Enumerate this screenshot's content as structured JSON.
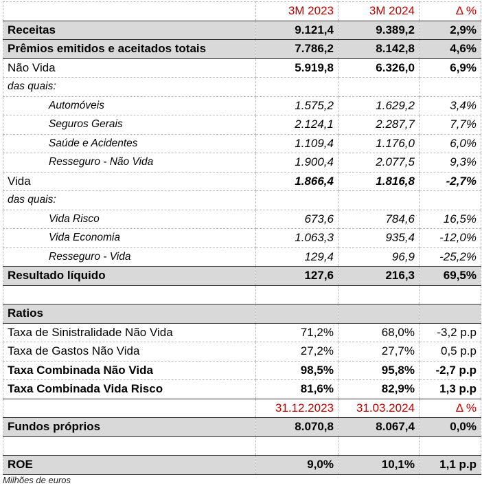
{
  "header": {
    "label": "",
    "col1": "3M 2023",
    "col2": "3M 2024",
    "col3": "Δ %"
  },
  "rows": [
    {
      "label": "Receitas",
      "v1": "9.121,4",
      "v2": "9.389,2",
      "v3": "2,9%"
    },
    {
      "label": "Prêmios emitidos e aceitados totais",
      "v1": "7.786,2",
      "v2": "8.142,8",
      "v3": "4,6%"
    },
    {
      "label": "Não Vida",
      "v1": "5.919,8",
      "v2": "6.326,0",
      "v3": "6,9%"
    },
    {
      "label": "das quais:",
      "v1": "",
      "v2": "",
      "v3": ""
    },
    {
      "label": "Automóveis",
      "v1": "1.575,2",
      "v2": "1.629,2",
      "v3": "3,4%"
    },
    {
      "label": "Seguros Gerais",
      "v1": "2.124,1",
      "v2": "2.287,7",
      "v3": "7,7%"
    },
    {
      "label": "Saúde e Acidentes",
      "v1": "1.109,4",
      "v2": "1.176,0",
      "v3": "6,0%"
    },
    {
      "label": "Resseguro - Não Vida",
      "v1": "1.900,4",
      "v2": "2.077,5",
      "v3": "9,3%"
    },
    {
      "label": "Vida",
      "v1": "1.866,4",
      "v2": "1.816,8",
      "v3": "-2,7%"
    },
    {
      "label": "das quais:",
      "v1": "",
      "v2": "",
      "v3": ""
    },
    {
      "label": "Vida Risco",
      "v1": "673,6",
      "v2": "784,6",
      "v3": "16,5%"
    },
    {
      "label": "Vida Economia",
      "v1": "1.063,3",
      "v2": "935,4",
      "v3": "-12,0%"
    },
    {
      "label": "Resseguro - Vida",
      "v1": "129,4",
      "v2": "96,9",
      "v3": "-25,2%"
    },
    {
      "label": "Resultado líquido",
      "v1": "127,6",
      "v2": "216,3",
      "v3": "69,5%"
    },
    {
      "label": "",
      "v1": "",
      "v2": "",
      "v3": ""
    },
    {
      "label": "Ratios",
      "v1": "",
      "v2": "",
      "v3": ""
    },
    {
      "label": "Taxa de Sinistralidade Não Vida",
      "v1": "71,2%",
      "v2": "68,0%",
      "v3": "-3,2 p.p"
    },
    {
      "label": "Taxa de Gastos Não Vida",
      "v1": "27,2%",
      "v2": "27,7%",
      "v3": "0,5 p.p"
    },
    {
      "label": "Taxa Combinada Não Vida",
      "v1": "98,5%",
      "v2": "95,8%",
      "v3": "-2,7 p.p"
    },
    {
      "label": "Taxa Combinada Vida Risco",
      "v1": "81,6%",
      "v2": "82,9%",
      "v3": "1,3 p.p"
    },
    {
      "label": "",
      "v1": "31.12.2023",
      "v2": "31.03.2024",
      "v3": "Δ %"
    },
    {
      "label": "Fundos próprios",
      "v1": "8.070,8",
      "v2": "8.067,4",
      "v3": "0,0%"
    },
    {
      "label": "",
      "v1": "",
      "v2": "",
      "v3": ""
    },
    {
      "label": "ROE",
      "v1": "9,0%",
      "v2": "10,1%",
      "v3": "1,1 p.p"
    }
  ],
  "footnote": "Milhões de euros",
  "colors": {
    "header_red": "#c00000",
    "gray_row": "#d9d9d9"
  }
}
